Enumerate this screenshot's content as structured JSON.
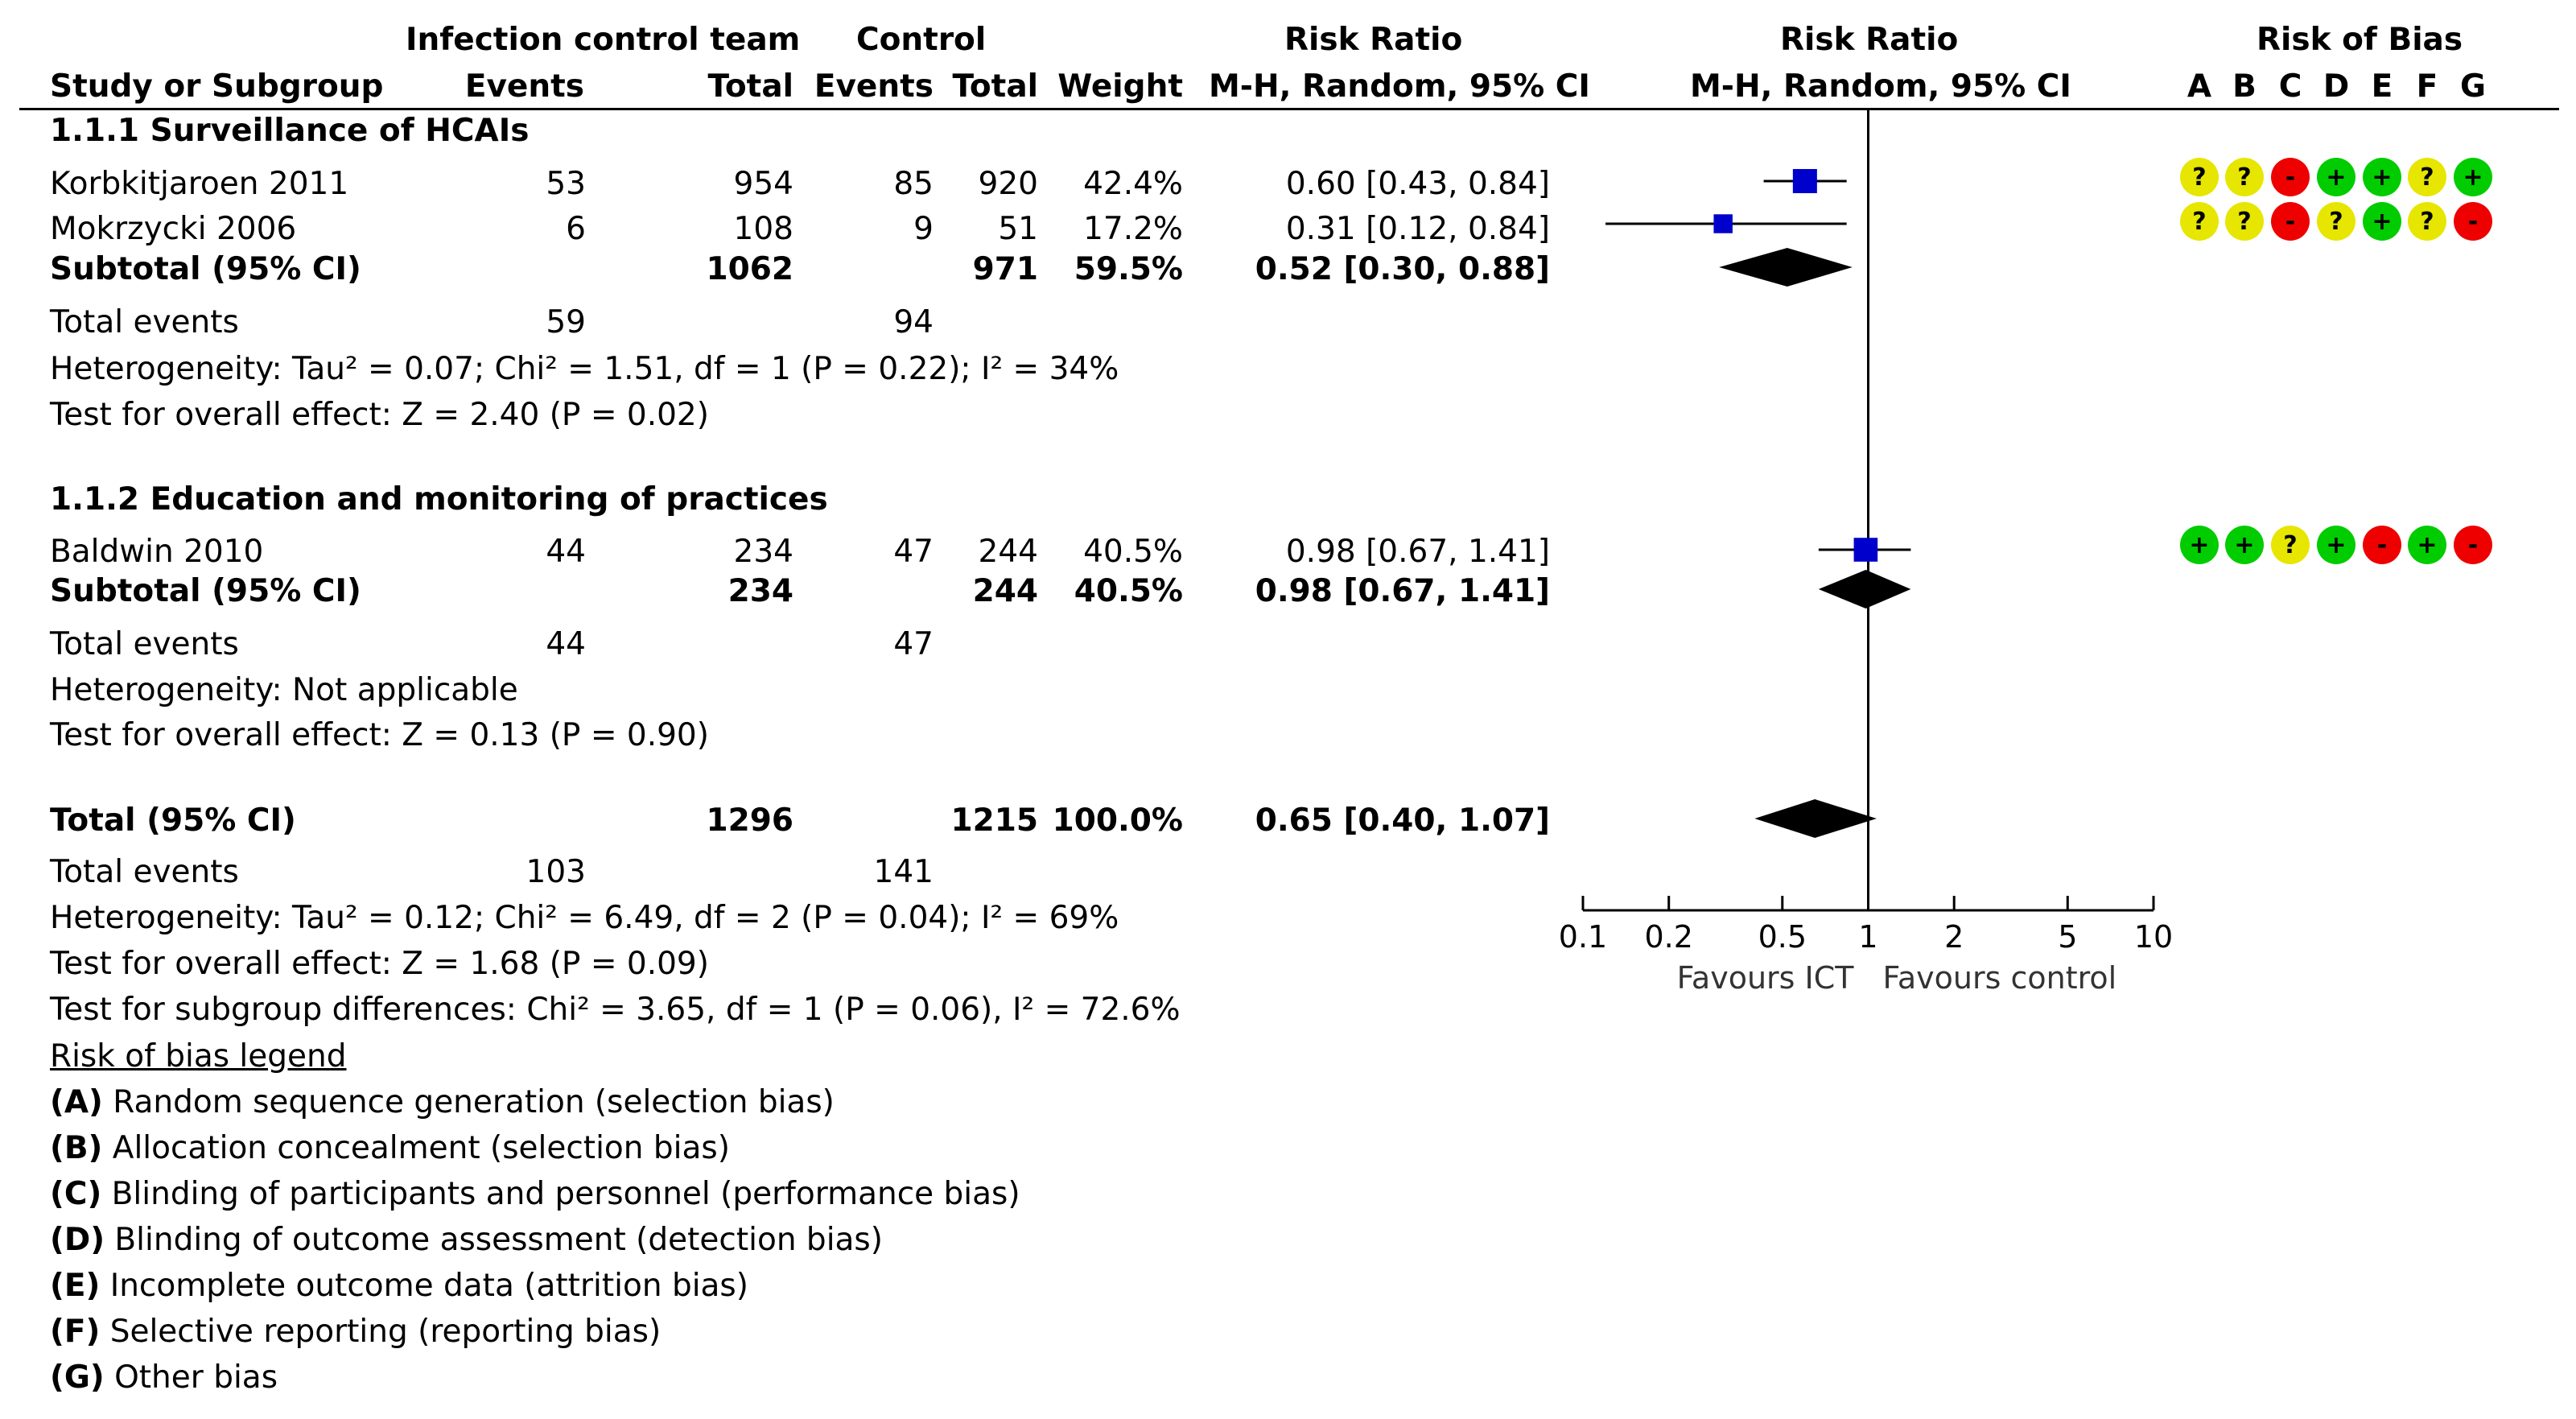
{
  "header": {
    "group1": "Infection control team",
    "group2": "Control",
    "rr_title": "Risk Ratio",
    "plot_title": "Risk Ratio",
    "rob_title": "Risk of Bias",
    "study_col": "Study or Subgroup",
    "events": "Events",
    "total": "Total",
    "weight": "Weight",
    "rr_method": "M-H, Random, 95% CI",
    "plot_method": "M-H, Random, 95% CI",
    "rob_letters": [
      "A",
      "B",
      "C",
      "D",
      "E",
      "F",
      "G"
    ]
  },
  "subgroups": [
    {
      "title": "1.1.1 Surveillance of HCAIs",
      "studies": [
        {
          "name": "Korbkitjaroen 2011",
          "ev1": "53",
          "tot1": "954",
          "ev2": "85",
          "tot2": "920",
          "weight": "42.4%",
          "ci": "0.60 [0.43, 0.84]",
          "rob": [
            "?",
            "?",
            "-",
            "+",
            "+",
            "?",
            "+"
          ]
        },
        {
          "name": "Mokrzycki 2006",
          "ev1": "6",
          "tot1": "108",
          "ev2": "9",
          "tot2": "51",
          "weight": "17.2%",
          "ci": "0.31 [0.12, 0.84]",
          "rob": [
            "?",
            "?",
            "-",
            "?",
            "+",
            "?",
            "-"
          ]
        }
      ],
      "subtotal": {
        "label": "Subtotal (95% CI)",
        "tot1": "1062",
        "tot2": "971",
        "weight": "59.5%",
        "ci": "0.52 [0.30, 0.88]"
      },
      "total_events": {
        "label": "Total events",
        "ev1": "59",
        "ev2": "94"
      },
      "heterogeneity": "Heterogeneity: Tau² = 0.07; Chi² = 1.51, df = 1 (P = 0.22); I² = 34%",
      "overall": "Test for overall effect: Z = 2.40 (P = 0.02)"
    },
    {
      "title": "1.1.2 Education and monitoring of practices",
      "studies": [
        {
          "name": "Baldwin 2010",
          "ev1": "44",
          "tot1": "234",
          "ev2": "47",
          "tot2": "244",
          "weight": "40.5%",
          "ci": "0.98 [0.67, 1.41]",
          "rob": [
            "+",
            "+",
            "?",
            "+",
            "-",
            "+",
            "-"
          ]
        }
      ],
      "subtotal": {
        "label": "Subtotal (95% CI)",
        "tot1": "234",
        "tot2": "244",
        "weight": "40.5%",
        "ci": "0.98 [0.67, 1.41]"
      },
      "total_events": {
        "label": "Total events",
        "ev1": "44",
        "ev2": "47"
      },
      "heterogeneity": "Heterogeneity: Not applicable",
      "overall": "Test for overall effect: Z = 0.13 (P = 0.90)"
    }
  ],
  "total": {
    "label": "Total (95% CI)",
    "tot1": "1296",
    "tot2": "1215",
    "weight": "100.0%",
    "ci": "0.65 [0.40, 1.07]",
    "events_label": "Total events",
    "ev1": "103",
    "ev2": "141",
    "heterogeneity": "Heterogeneity: Tau² = 0.12; Chi² = 6.49, df = 2 (P = 0.04); I² = 69%",
    "overall": "Test for overall effect: Z = 1.68 (P = 0.09)",
    "subgroup_diff": "Test for subgroup differences: Chi² = 3.65, df = 1 (P = 0.06), I² = 72.6%"
  },
  "legend": {
    "title": "Risk of bias legend",
    "items": [
      {
        "letter": "A",
        "text": "Random sequence generation (selection bias)"
      },
      {
        "letter": "B",
        "text": "Allocation concealment (selection bias)"
      },
      {
        "letter": "C",
        "text": "Blinding of participants and personnel (performance bias)"
      },
      {
        "letter": "D",
        "text": "Blinding of outcome assessment (detection bias)"
      },
      {
        "letter": "E",
        "text": "Incomplete outcome data (attrition bias)"
      },
      {
        "letter": "F",
        "text": "Selective reporting (reporting bias)"
      },
      {
        "letter": "G",
        "text": "Other bias"
      }
    ]
  },
  "colors": {
    "square": "#0000cc",
    "diamond": "#000000",
    "low_risk": "#00cc00",
    "unclear_risk": "#e6e600",
    "high_risk": "#ee0000",
    "line": "#000000"
  },
  "chart_data": {
    "type": "forest",
    "scale": "log",
    "xlim": [
      0.1,
      10
    ],
    "ticks": [
      0.1,
      0.2,
      0.5,
      1,
      2,
      5,
      10
    ],
    "tick_labels": [
      "0.1",
      "0.2",
      "0.5",
      "1",
      "2",
      "5",
      "10"
    ],
    "null_line": 1,
    "xlabel_left": "Favours ICT",
    "xlabel_right": "Favours control",
    "studies": [
      {
        "name": "Korbkitjaroen 2011",
        "rr": 0.6,
        "lower": 0.43,
        "upper": 0.84,
        "weight": 42.4
      },
      {
        "name": "Mokrzycki 2006",
        "rr": 0.31,
        "lower": 0.12,
        "upper": 0.84,
        "weight": 17.2
      },
      {
        "name": "Baldwin 2010",
        "rr": 0.98,
        "lower": 0.67,
        "upper": 1.41,
        "weight": 40.5
      }
    ],
    "diamonds": [
      {
        "name": "Subtotal 1.1.1",
        "rr": 0.52,
        "lower": 0.3,
        "upper": 0.88
      },
      {
        "name": "Subtotal 1.1.2",
        "rr": 0.98,
        "lower": 0.67,
        "upper": 1.41
      },
      {
        "name": "Total",
        "rr": 0.65,
        "lower": 0.4,
        "upper": 1.07
      }
    ]
  }
}
